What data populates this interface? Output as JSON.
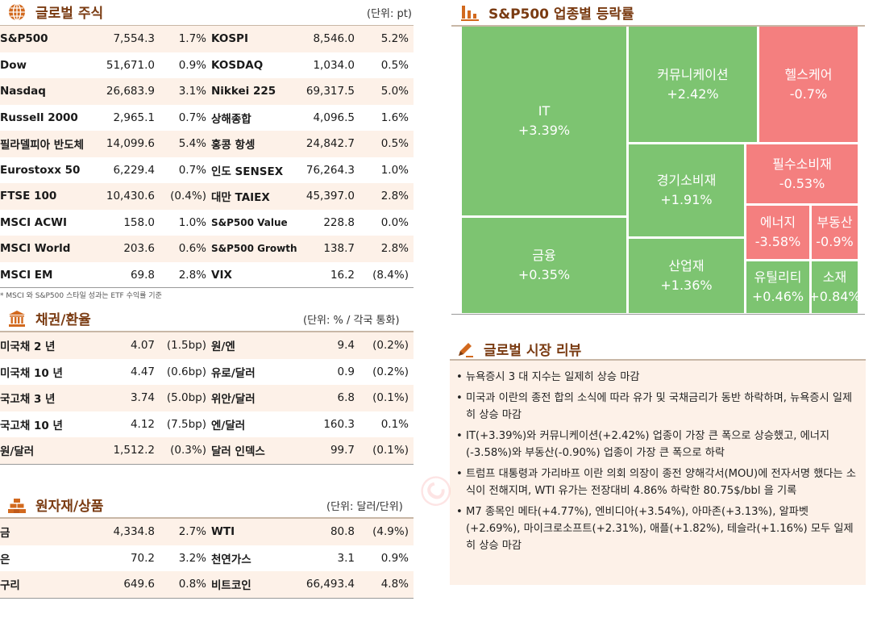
{
  "global_stocks": {
    "title": "글로벌 주식",
    "unit": "(단위: pt)",
    "rows": [
      {
        "n1": "S&P500",
        "v1": "7,554.3",
        "p1": "1.7%",
        "n2": "KOSPI",
        "v2": "8,546.0",
        "p2": "5.2%"
      },
      {
        "n1": "Dow",
        "v1": "51,671.0",
        "p1": "0.9%",
        "n2": "KOSDAQ",
        "v2": "1,034.0",
        "p2": "0.5%"
      },
      {
        "n1": "Nasdaq",
        "v1": "26,683.9",
        "p1": "3.1%",
        "n2": "Nikkei 225",
        "v2": "69,317.5",
        "p2": "5.0%"
      },
      {
        "n1": "Russell 2000",
        "v1": "2,965.1",
        "p1": "0.7%",
        "n2": "상해종합",
        "v2": "4,096.5",
        "p2": "1.6%"
      },
      {
        "n1": "필라델피아 반도체",
        "v1": "14,099.6",
        "p1": "5.4%",
        "n2": "홍콩 항셍",
        "v2": "24,842.7",
        "p2": "0.5%"
      },
      {
        "n1": "Eurostoxx 50",
        "v1": "6,229.4",
        "p1": "0.7%",
        "n2": "인도 SENSEX",
        "v2": "76,264.3",
        "p2": "1.0%"
      },
      {
        "n1": "FTSE 100",
        "v1": "10,430.6",
        "p1": "(0.4%)",
        "n2": "대만 TAIEX",
        "v2": "45,397.0",
        "p2": "2.8%"
      },
      {
        "n1": "MSCI ACWI",
        "v1": "158.0",
        "p1": "1.0%",
        "n2": "S&P500 Value",
        "v2": "228.8",
        "p2": "0.0%"
      },
      {
        "n1": "MSCI World",
        "v1": "203.6",
        "p1": "0.6%",
        "n2": "S&P500 Growth",
        "v2": "138.7",
        "p2": "2.8%"
      },
      {
        "n1": "MSCI EM",
        "v1": "69.8",
        "p1": "2.8%",
        "n2": "VIX",
        "v2": "16.2",
        "p2": "(8.4%)"
      }
    ],
    "footnote": "* MSCI 와 S&P500 스타일 성과는 ETF 수익률 기준"
  },
  "bonds_fx": {
    "title": "채권/환율",
    "unit": "(단위: % / 각국 통화)",
    "rows": [
      {
        "n1": "미국채 2 년",
        "v1": "4.07",
        "p1": "(1.5bp)",
        "n2": "원/엔",
        "v2": "9.4",
        "p2": "(0.2%)"
      },
      {
        "n1": "미국채 10 년",
        "v1": "4.47",
        "p1": "(0.6bp)",
        "n2": "유로/달러",
        "v2": "0.9",
        "p2": "(0.2%)"
      },
      {
        "n1": "국고채 3 년",
        "v1": "3.74",
        "p1": "(5.0bp)",
        "n2": "위안/달러",
        "v2": "6.8",
        "p2": "(0.1%)"
      },
      {
        "n1": "국고채 10 년",
        "v1": "4.12",
        "p1": "(7.5bp)",
        "n2": "엔/달러",
        "v2": "160.3",
        "p2": "0.1%"
      },
      {
        "n1": "원/달러",
        "v1": "1,512.2",
        "p1": "(0.3%)",
        "n2": "달러 인덱스",
        "v2": "99.7",
        "p2": "(0.1%)"
      }
    ]
  },
  "commodities": {
    "title": "원자재/상품",
    "unit": "(단위: 달러/단위)",
    "rows": [
      {
        "n1": "금",
        "v1": "4,334.8",
        "p1": "2.7%",
        "n2": "WTI",
        "v2": "80.8",
        "p2": "(4.9%)"
      },
      {
        "n1": "은",
        "v1": "70.2",
        "p1": "3.2%",
        "n2": "천연가스",
        "v2": "3.1",
        "p2": "0.9%"
      },
      {
        "n1": "구리",
        "v1": "649.6",
        "p1": "0.8%",
        "n2": "비트코인",
        "v2": "66,493.4",
        "p2": "4.8%"
      }
    ]
  },
  "sector": {
    "title": "S&P500 업종별 등락률",
    "tiles": [
      {
        "name": "IT",
        "value": "+3.39%",
        "sign": "up"
      },
      {
        "name": "커뮤니케이션",
        "value": "+2.42%",
        "sign": "up"
      },
      {
        "name": "헬스케어",
        "value": "-0.7%",
        "sign": "down"
      },
      {
        "name": "경기소비재",
        "value": "+1.91%",
        "sign": "up"
      },
      {
        "name": "필수소비재",
        "value": "-0.53%",
        "sign": "down"
      },
      {
        "name": "에너지",
        "value": "-3.58%",
        "sign": "down"
      },
      {
        "name": "부동산",
        "value": "-0.9%",
        "sign": "down"
      },
      {
        "name": "금융",
        "value": "+0.35%",
        "sign": "up"
      },
      {
        "name": "산업재",
        "value": "+1.36%",
        "sign": "up"
      },
      {
        "name": "유틸리티",
        "value": "+0.46%",
        "sign": "up"
      },
      {
        "name": "소재",
        "value": "+0.84%",
        "sign": "up"
      }
    ]
  },
  "review": {
    "title": "글로벌 시장 리뷰",
    "items": [
      "뉴욕증시 3 대 지수는 일제히 상승 마감",
      "미국과 이란의 종전 합의 소식에 따라 유가 및 국채금리가 동반 하락하며, 뉴욕증시 일제히 상승 마감",
      "IT(+3.39%)와 커뮤니케이션(+2.42%) 업종이 가장 큰 폭으로 상승했고, 에너지(-3.58%)와 부동산(-0.90%) 업종이 가장 큰 폭으로 하락",
      "트럼프 대통령과 가리바프 이란 의회 의장이 종전 양해각서(MOU)에 전자서명 했다는 소식이 전해지며, WTI 유가는 전장대비 4.86% 하락한 80.75$/bbl 을 기록",
      "M7 종목인 메타(+4.77%), 엔비디아(+3.54%), 아마존(+3.13%), 알파벳(+2.69%), 마이크로소프트(+2.31%), 애플(+1.82%), 테슬라(+1.16%) 모두 일제히 상승 마감"
    ]
  },
  "colors": {
    "up": "#7dc471",
    "down": "#f47f7f",
    "accent": "#7a3b12",
    "row_tint": "#fdf1e8"
  },
  "icons": {
    "stocks": "globe-icon",
    "bonds": "bank-icon",
    "commodities": "gold-bars-icon",
    "sector": "bar-chart-icon",
    "review": "pen-icon"
  }
}
